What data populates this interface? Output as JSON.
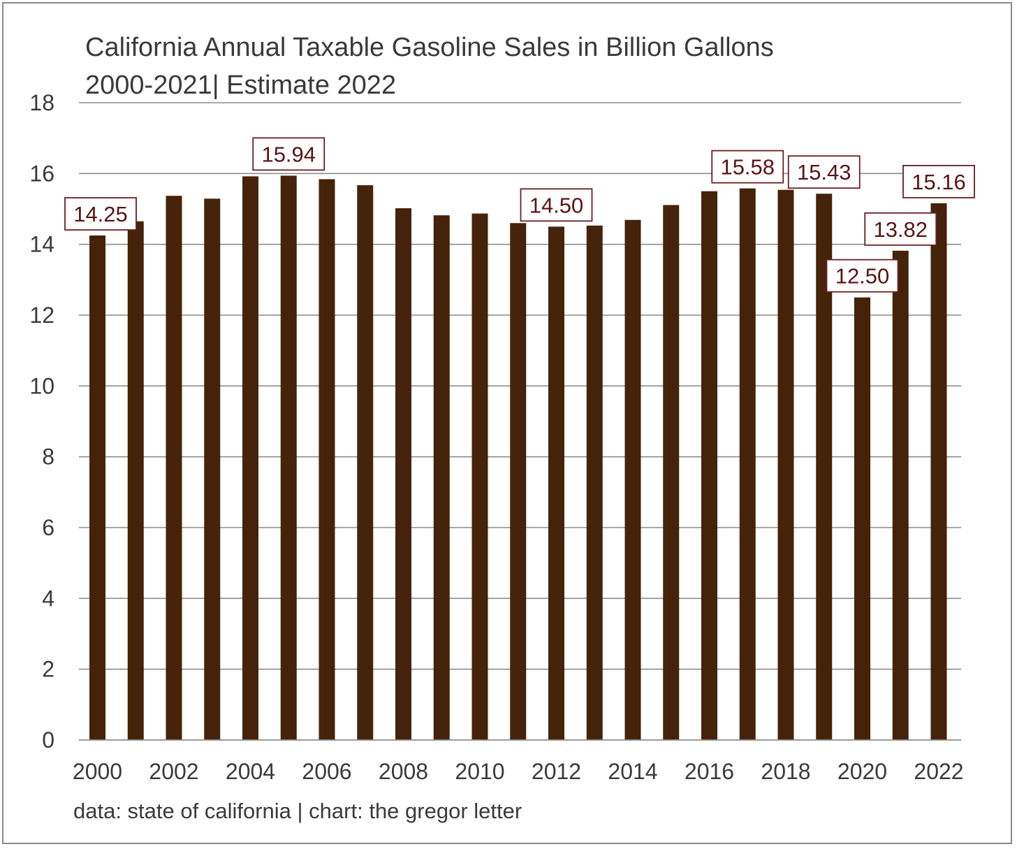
{
  "chart_data": {
    "type": "bar",
    "title": "California Annual Taxable Gasoline Sales in Billion Gallons",
    "subtitle": "2000-2021| Estimate 2022",
    "xlabel": "",
    "ylabel": "",
    "ylim": [
      0,
      18
    ],
    "yticks": [
      "0",
      "2",
      "4",
      "6",
      "8",
      "10",
      "12",
      "14",
      "16",
      "18"
    ],
    "xticks": [
      "2000",
      "2002",
      "2004",
      "2006",
      "2008",
      "2010",
      "2012",
      "2014",
      "2016",
      "2018",
      "2020",
      "2022"
    ],
    "categories": [
      "2000",
      "2001",
      "2002",
      "2003",
      "2004",
      "2005",
      "2006",
      "2007",
      "2008",
      "2009",
      "2010",
      "2011",
      "2012",
      "2013",
      "2014",
      "2015",
      "2016",
      "2017",
      "2018",
      "2019",
      "2020",
      "2021",
      "2022"
    ],
    "values": [
      14.25,
      14.65,
      15.37,
      15.29,
      15.92,
      15.94,
      15.84,
      15.67,
      15.02,
      14.82,
      14.87,
      14.6,
      14.5,
      14.53,
      14.69,
      15.11,
      15.5,
      15.58,
      15.54,
      15.43,
      12.5,
      13.82,
      15.16
    ],
    "data_labels": [
      {
        "category": "2000",
        "text": "14.25"
      },
      {
        "category": "2005",
        "text": "15.94"
      },
      {
        "category": "2012",
        "text": "14.50"
      },
      {
        "category": "2017",
        "text": "15.58"
      },
      {
        "category": "2019",
        "text": "15.43"
      },
      {
        "category": "2020",
        "text": "12.50"
      },
      {
        "category": "2021",
        "text": "13.82"
      },
      {
        "category": "2022",
        "text": "15.16"
      }
    ],
    "grid": true,
    "legend": "none",
    "colors": {
      "bar": "#44230a",
      "label_text": "#5a1414",
      "label_border": "#6b1f1f",
      "grid": "#8c8c8c",
      "text": "#3a3a3a",
      "frame": "#8a8a8a"
    }
  },
  "footer": {
    "source": "data: state of california | chart: the gregor letter"
  }
}
